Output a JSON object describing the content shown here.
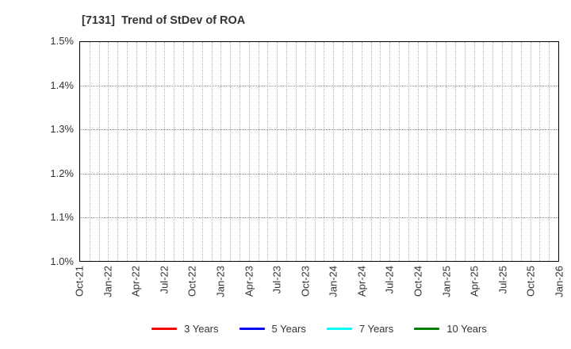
{
  "title": "[7131]  Trend of StDev of ROA",
  "chart_data": {
    "type": "line",
    "title": "[7131]  Trend of StDev of ROA",
    "x_axis": {
      "tick_labels": [
        "Oct-21",
        "Jan-22",
        "Apr-22",
        "Jul-22",
        "Oct-22",
        "Jan-23",
        "Apr-23",
        "Jul-23",
        "Oct-23",
        "Jan-24",
        "Apr-24",
        "Jul-24",
        "Oct-24",
        "Jan-25",
        "Apr-25",
        "Jul-25",
        "Oct-25",
        "Jan-26"
      ],
      "months_between_major_ticks": 3,
      "total_month_intervals": 51,
      "minor_grid_every_month": true
    },
    "y_axis": {
      "ylim": [
        1.0,
        1.5
      ],
      "ticks": [
        {
          "label": "1.5%",
          "value": 1.5
        },
        {
          "label": "1.4%",
          "value": 1.4
        },
        {
          "label": "1.3%",
          "value": 1.3
        },
        {
          "label": "1.2%",
          "value": 1.2
        },
        {
          "label": "1.1%",
          "value": 1.1
        },
        {
          "label": "1.0%",
          "value": 1.0
        }
      ]
    },
    "grid": true,
    "legend_position": "bottom-center",
    "series": [
      {
        "name": "3 Years",
        "color": "#ff0000",
        "values": []
      },
      {
        "name": "5 Years",
        "color": "#0000ff",
        "values": []
      },
      {
        "name": "7 Years",
        "color": "#00ffff",
        "values": []
      },
      {
        "name": "10 Years",
        "color": "#008000",
        "values": []
      }
    ],
    "plot_area_empty": true
  },
  "colors": {
    "title_text": "#333333",
    "tick_text": "#333333",
    "plot_border": "#000000",
    "vertical_grid": "#b0b0b0",
    "horizontal_grid": "#8a8a8a",
    "background": "#ffffff"
  }
}
